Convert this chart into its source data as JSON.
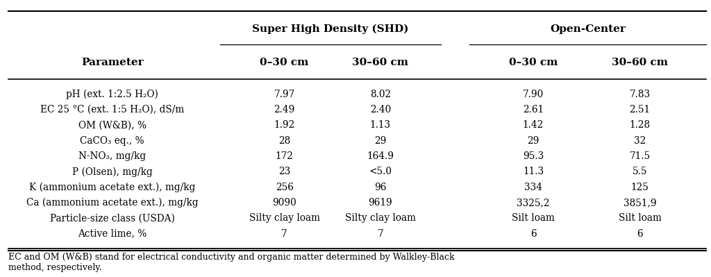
{
  "group_headers": [
    "Super High Density (SHD)",
    "Open-Center"
  ],
  "col_headers": [
    "0–30 cm",
    "30–60 cm",
    "0–30 cm",
    "30–60 cm"
  ],
  "row_labels": [
    "pH (ext. 1:2.5 H₂O)",
    "EC 25 °C (ext. 1:5 H₂O), dS/m",
    "OM (W&B), %",
    "CaCO₃ eq., %",
    "N-NO₃, mg/kg",
    "P (Olsen), mg/kg",
    "K (ammonium acetate ext.), mg/kg",
    "Ca (ammonium acetate ext.), mg/kg",
    "Particle-size class (USDA)",
    "Active lime, %"
  ],
  "data": [
    [
      "7.97",
      "8.02",
      "7.90",
      "7.83"
    ],
    [
      "2.49",
      "2.40",
      "2.61",
      "2.51"
    ],
    [
      "1.92",
      "1.13",
      "1.42",
      "1.28"
    ],
    [
      "28",
      "29",
      "29",
      "32"
    ],
    [
      "172",
      "164.9",
      "95.3",
      "71.5"
    ],
    [
      "23",
      "<5.0",
      "11.3",
      "5.5"
    ],
    [
      "256",
      "96",
      "334",
      "125"
    ],
    [
      "9090",
      "9619",
      "3325,2",
      "3851,9"
    ],
    [
      "Silty clay loam",
      "Silty clay loam",
      "Silt loam",
      "Silt loam"
    ],
    [
      "7",
      "7",
      "6",
      "6"
    ]
  ],
  "footnote": "EC and OM (W&B) stand for electrical conductivity and organic matter determined by Walkley-Black\nmethod, respectively.",
  "bg_color": "#ffffff",
  "text_color": "#000000",
  "font_size": 9.8,
  "header_font_size": 11.0,
  "footnote_font_size": 9.0
}
